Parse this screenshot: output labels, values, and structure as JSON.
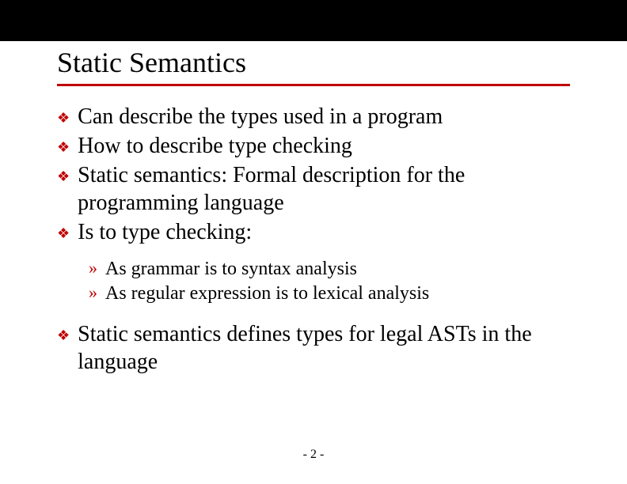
{
  "title": "Static Semantics",
  "bullets": {
    "b0": "Can describe the types used in a program",
    "b1": "How to describe type checking",
    "b2": "Static semantics: Formal description for the programming language",
    "b3": "Is to type checking:",
    "b4": "Static semantics defines types for legal ASTs in the language"
  },
  "subs": {
    "s0": "As grammar is to syntax analysis",
    "s1": "As regular expression is to lexical analysis"
  },
  "page_number": "- 2 -",
  "colors": {
    "accent": "#c00000",
    "top_bar": "#000000",
    "background": "#ffffff",
    "text": "#000000"
  },
  "glyphs": {
    "diamond": "❖",
    "raquo": "»"
  }
}
